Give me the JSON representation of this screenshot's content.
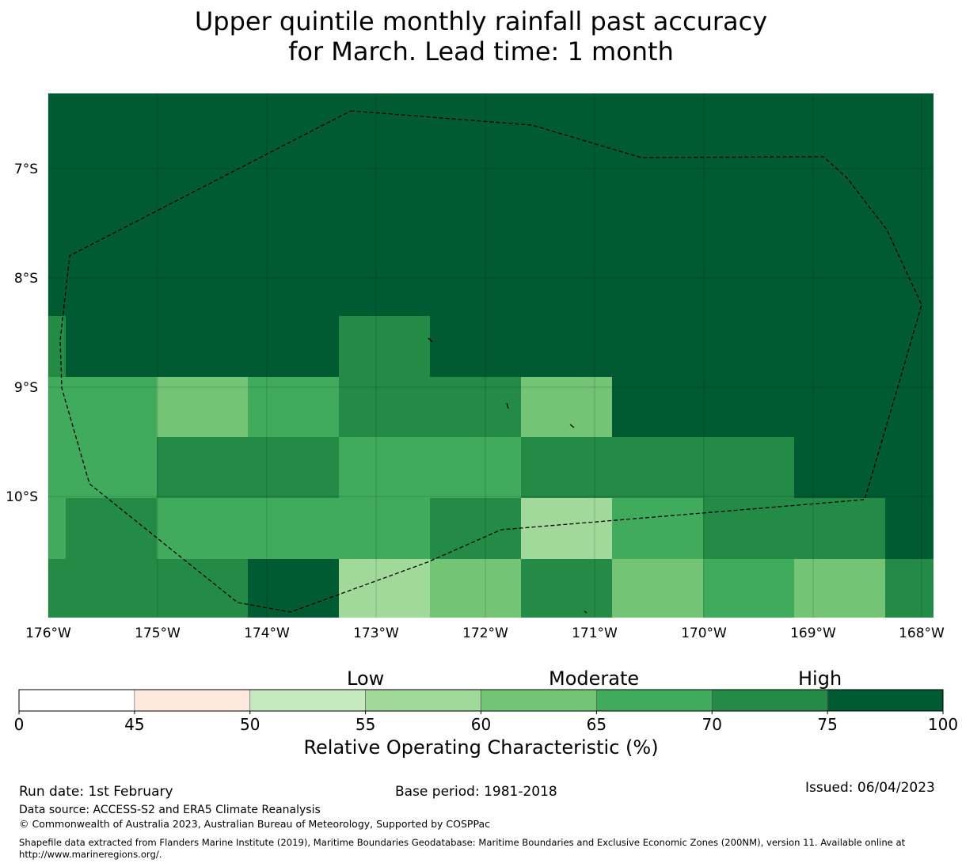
{
  "title": {
    "line1": "Upper quintile monthly rainfall past accuracy",
    "line2": "for March. Lead time: 1 month"
  },
  "map": {
    "lon_range": [
      -176,
      -167.9
    ],
    "lat_range": [
      -11.15,
      -6.3
    ],
    "lon_ticks": [
      "176°W",
      "175°W",
      "174°W",
      "173°W",
      "172°W",
      "171°W",
      "170°W",
      "169°W",
      "168°W"
    ],
    "lat_ticks": [
      "7°S",
      "8°S",
      "9°S",
      "10°S"
    ],
    "colors": {
      "c75": "#005a32",
      "c70": "#238b45",
      "c65": "#41ab5d",
      "c60": "#74c476",
      "c55": "#a1d99b"
    }
  },
  "colorbar": {
    "bins": [
      {
        "from": 0,
        "to": 45,
        "color": "#ffffff"
      },
      {
        "from": 45,
        "to": 50,
        "color": "#fee8de"
      },
      {
        "from": 50,
        "to": 55,
        "color": "#c7e9c0"
      },
      {
        "from": 55,
        "to": 60,
        "color": "#a1d99b"
      },
      {
        "from": 60,
        "to": 65,
        "color": "#74c476"
      },
      {
        "from": 65,
        "to": 70,
        "color": "#41ab5d"
      },
      {
        "from": 70,
        "to": 75,
        "color": "#238b45"
      },
      {
        "from": 75,
        "to": 100,
        "color": "#005a32"
      }
    ],
    "ticks": [
      "0",
      "45",
      "50",
      "55",
      "60",
      "65",
      "70",
      "75",
      "100"
    ],
    "category_low": "Low",
    "category_moderate": "Moderate",
    "category_high": "High",
    "label": "Relative Operating Characteristic (%)"
  },
  "footer": {
    "run_date": "Run date: 1st February",
    "base_period": "Base period: 1981-2018",
    "issued": "Issued: 06/04/2023",
    "data_source": "Data source: ACCESS-S2 and ERA5 Climate Reanalysis",
    "copyright": "© Commonwealth of Australia 2023, Australian Bureau of Meteorology, Supported by COSPPac",
    "shapefile_line1": "Shapefile data extracted from Flanders Marine Institute (2019), Maritime Boundaries Geodatabase: Maritime Boundaries and Exclusive Economic Zones (200NM), version 11. Available online at",
    "shapefile_line2": "http://www.marineregions.org/."
  }
}
